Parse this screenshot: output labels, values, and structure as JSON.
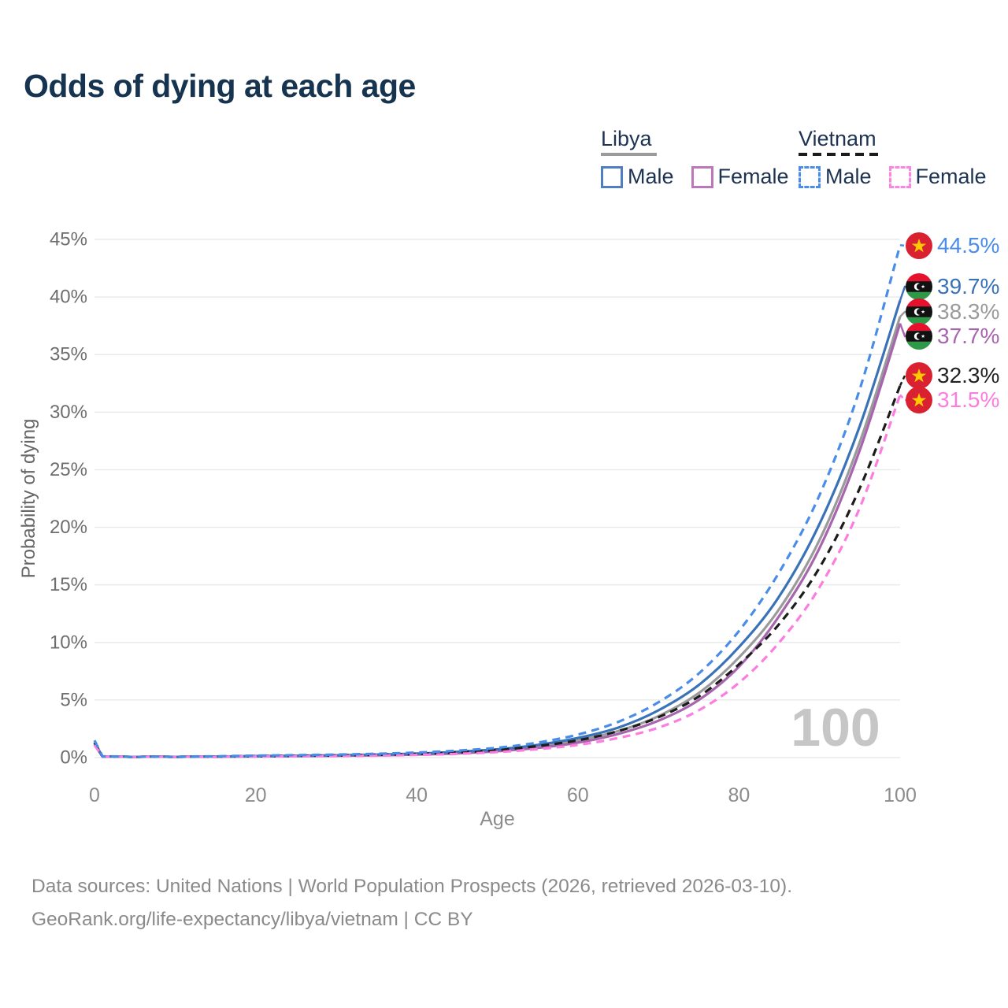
{
  "page": {
    "title": "Odds of dying at each age"
  },
  "legend": {
    "groups": [
      {
        "label": "Libya",
        "underline_style": "solid",
        "underline_color": "#9b9b9b",
        "items": [
          {
            "label": "Male",
            "color": "#4e7fc4",
            "dashed": false
          },
          {
            "label": "Female",
            "color": "#bb77b9",
            "dashed": false
          }
        ]
      },
      {
        "label": "Vietnam",
        "underline_style": "dashed",
        "underline_color": "#1c1c1c",
        "items": [
          {
            "label": "Male",
            "color": "#4a8de8",
            "dashed": true
          },
          {
            "label": "Female",
            "color": "#fc85e4",
            "dashed": true
          }
        ]
      }
    ]
  },
  "chart_data": {
    "type": "line",
    "title": "Odds of dying at each age",
    "xlabel": "Age",
    "ylabel": "Probability of dying",
    "xlim": [
      0,
      100
    ],
    "ylim": [
      0,
      45
    ],
    "grid": "horizontal",
    "x_ticks": [
      0,
      20,
      40,
      60,
      80,
      100
    ],
    "x_tick_labels": [
      "0",
      "20",
      "40",
      "60",
      "80",
      "100"
    ],
    "y_ticks": [
      0,
      5,
      10,
      15,
      20,
      25,
      30,
      35,
      40,
      45
    ],
    "y_tick_labels": [
      "0%",
      "5%",
      "10%",
      "15%",
      "20%",
      "25%",
      "30%",
      "35%",
      "40%",
      "45%"
    ],
    "watermark": "100",
    "x": [
      0,
      1,
      5,
      10,
      15,
      20,
      25,
      30,
      35,
      40,
      45,
      50,
      55,
      60,
      65,
      70,
      75,
      80,
      85,
      90,
      95,
      100
    ],
    "series": [
      {
        "name": "Vietnam Male",
        "country": "Vietnam",
        "sex": "male",
        "color": "#4a8de8",
        "dashed": true,
        "flag": "vietnam",
        "end_value": 44.5,
        "end_label": "44.5%",
        "end_label_color": "#4a8de8",
        "values": [
          1.5,
          0.1,
          0.05,
          0.06,
          0.11,
          0.17,
          0.21,
          0.26,
          0.33,
          0.44,
          0.6,
          0.85,
          1.3,
          2.0,
          3.1,
          4.8,
          7.3,
          11.0,
          16.1,
          22.8,
          32.0,
          44.5
        ]
      },
      {
        "name": "Libya Male",
        "country": "Libya",
        "sex": "male",
        "color": "#3a72b8",
        "dashed": false,
        "flag": "libya",
        "end_value": 39.7,
        "end_label": "39.7%",
        "end_label_color": "#3a72b8",
        "values": [
          1.3,
          0.09,
          0.05,
          0.05,
          0.09,
          0.13,
          0.16,
          0.2,
          0.26,
          0.35,
          0.5,
          0.72,
          1.1,
          1.7,
          2.6,
          4.1,
          6.3,
          9.6,
          14.0,
          20.3,
          28.8,
          39.7
        ]
      },
      {
        "name": "Libya",
        "country": "Libya",
        "sex": "both",
        "color": "#9a9a9a",
        "dashed": false,
        "flag": "libya",
        "end_value": 38.3,
        "end_label": "38.3%",
        "end_label_color": "#9a9a9a",
        "values": [
          1.2,
          0.08,
          0.04,
          0.05,
          0.08,
          0.11,
          0.14,
          0.17,
          0.22,
          0.3,
          0.43,
          0.63,
          0.96,
          1.5,
          2.3,
          3.6,
          5.6,
          8.7,
          12.9,
          18.9,
          27.4,
          38.3
        ]
      },
      {
        "name": "Libya Female",
        "country": "Libya",
        "sex": "female",
        "color": "#a765ad",
        "dashed": false,
        "flag": "libya",
        "end_value": 37.7,
        "end_label": "37.7%",
        "end_label_color": "#a765ad",
        "values": [
          1.1,
          0.08,
          0.04,
          0.04,
          0.07,
          0.1,
          0.12,
          0.15,
          0.19,
          0.26,
          0.37,
          0.55,
          0.84,
          1.3,
          2.05,
          3.2,
          5.0,
          7.9,
          12.3,
          18.2,
          26.7,
          37.7
        ]
      },
      {
        "name": "Vietnam",
        "country": "Vietnam",
        "sex": "both",
        "color": "#1c1c1c",
        "dashed": true,
        "flag": "vietnam",
        "end_value": 32.3,
        "end_label": "32.3%",
        "end_label_color": "#222222",
        "values": [
          1.3,
          0.09,
          0.04,
          0.05,
          0.08,
          0.12,
          0.15,
          0.19,
          0.24,
          0.32,
          0.45,
          0.66,
          1.0,
          1.5,
          2.3,
          3.5,
          5.3,
          8.1,
          11.6,
          16.5,
          23.4,
          32.3
        ]
      },
      {
        "name": "Vietnam Female",
        "country": "Vietnam",
        "sex": "female",
        "color": "#fb7de0",
        "dashed": true,
        "flag": "vietnam",
        "end_value": 31.5,
        "end_label": "31.5%",
        "end_label_color": "#fb7de0",
        "values": [
          1.1,
          0.08,
          0.04,
          0.04,
          0.06,
          0.09,
          0.11,
          0.13,
          0.17,
          0.23,
          0.32,
          0.48,
          0.73,
          1.1,
          1.7,
          2.6,
          4.1,
          6.5,
          10.0,
          14.8,
          21.7,
          31.5
        ]
      }
    ]
  },
  "colors": {
    "title_text": "#16334f",
    "legend_text": "#1d3354",
    "gridline": "#eaeaea",
    "axis_tick_text": "#6e6e6e",
    "axis_label_text": "#8c8c8c",
    "watermark": "#c6c6c6",
    "footer_text": "#8a8a8a",
    "vietnam_flag_red": "#da2131",
    "vietnam_flag_star": "#ffcb00",
    "libya_flag_red": "#e8112d",
    "libya_flag_black": "#111111",
    "libya_flag_green": "#2e9a47"
  },
  "footer": {
    "line1": "Data sources: United Nations | World Population Prospects (2026, retrieved 2026-03-10).",
    "line2": "GeoRank.org/life-expectancy/libya/vietnam | CC BY"
  }
}
